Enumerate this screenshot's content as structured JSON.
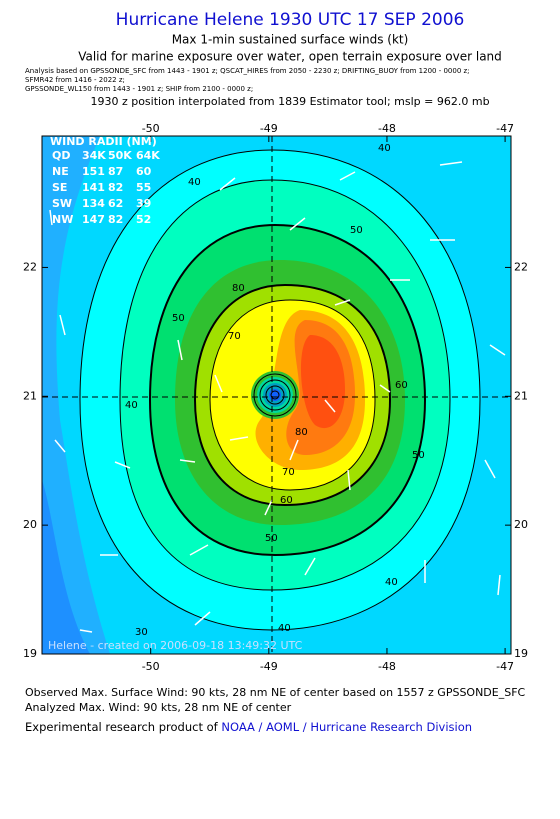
{
  "chart_data": {
    "type": "contour",
    "title": "Hurricane Helene 1930 UTC 17 SEP 2006",
    "subtitle": "Max 1-min sustained surface winds (kt)",
    "validity": "Valid for marine exposure over water, open terrain exposure over land",
    "sources": [
      "Analysis based on  GPSSONDE_SFC from 1443 - 1901 z;  QSCAT_HIRES from 2050 - 2230 z;  DRIFTING_BUOY from 1200 - 0000 z;",
      "SFMR42 from 1416 - 2022 z;",
      "GPSSONDE_WL150 from 1443 - 1901 z;  SHIP from 2100 - 0000 z;"
    ],
    "position_note": "1930 z position interpolated from 1839 Estimator tool; mslp = 962.0 mb",
    "xlim": [
      -50.92,
      -46.95
    ],
    "ylim": [
      19,
      23.02
    ],
    "xticks": [
      -50,
      -49,
      -48,
      -47
    ],
    "yticks": [
      19,
      20,
      21,
      22
    ],
    "contour_labels": [
      40,
      50,
      60,
      70,
      80,
      30
    ],
    "wind_radii": {
      "title": "WIND RADII (NM)",
      "header": [
        "QD",
        "34K",
        "50K",
        "64K"
      ],
      "rows": [
        [
          "NE",
          151,
          87,
          60
        ],
        [
          "SE",
          141,
          82,
          55
        ],
        [
          "SW",
          134,
          62,
          39
        ],
        [
          "NW",
          147,
          82,
          52
        ]
      ]
    },
    "watermark": "Helene - created on 2006-09-18 13:49:32 UTC",
    "footer": [
      "Observed Max. Surface Wind: 90 kts, 28 nm NE of center based on 1557 z GPSSONDE_SFC",
      "Analyzed Max. Wind: 90 kts, 28 nm NE of center"
    ],
    "credit": "Experimental research product of",
    "credit_link": "NOAA / AOML / Hurricane Research Division"
  }
}
